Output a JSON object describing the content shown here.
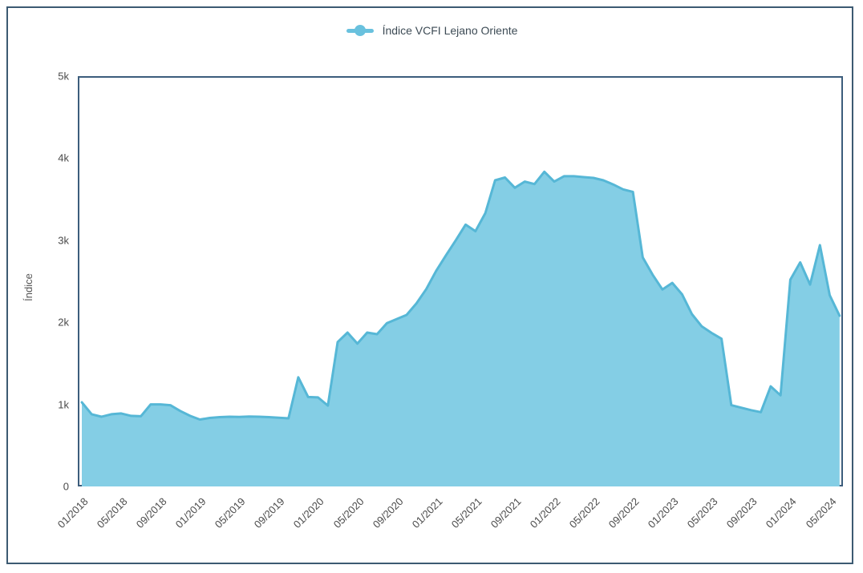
{
  "window": {
    "background": "#ffffff",
    "frame_border_color": "#3c5a72"
  },
  "legend": {
    "label": "Índice VCFI Lejano Oriente",
    "marker_color": "#69c1de",
    "text_color": "#3d4b55",
    "position": "top-center"
  },
  "chart_data": {
    "type": "area",
    "title": "",
    "xlabel": "",
    "ylabel": "Índice",
    "ylim": [
      0,
      5000
    ],
    "grid": "horizontal-only",
    "legend_position": "top-center",
    "y_ticks": [
      0,
      1000,
      2000,
      3000,
      4000,
      5000
    ],
    "y_tick_labels": [
      "0",
      "1k",
      "2k",
      "3k",
      "4k",
      "5k"
    ],
    "x_tick_every": 4,
    "x_tick_labels": [
      "01/2018",
      "05/2018",
      "09/2018",
      "01/2019",
      "05/2019",
      "09/2019",
      "01/2020",
      "05/2020",
      "09/2020",
      "01/2021",
      "05/2021",
      "09/2021",
      "01/2022",
      "05/2022",
      "09/2022",
      "01/2023",
      "05/2023",
      "09/2023",
      "01/2024",
      "05/2024"
    ],
    "x": [
      "01/2018",
      "02/2018",
      "03/2018",
      "04/2018",
      "05/2018",
      "06/2018",
      "07/2018",
      "08/2018",
      "09/2018",
      "10/2018",
      "11/2018",
      "12/2018",
      "01/2019",
      "02/2019",
      "03/2019",
      "04/2019",
      "05/2019",
      "06/2019",
      "07/2019",
      "08/2019",
      "09/2019",
      "10/2019",
      "11/2019",
      "12/2019",
      "01/2020",
      "02/2020",
      "03/2020",
      "04/2020",
      "05/2020",
      "06/2020",
      "07/2020",
      "08/2020",
      "09/2020",
      "10/2020",
      "11/2020",
      "12/2020",
      "01/2021",
      "02/2021",
      "03/2021",
      "04/2021",
      "05/2021",
      "06/2021",
      "07/2021",
      "08/2021",
      "09/2021",
      "10/2021",
      "11/2021",
      "12/2021",
      "01/2022",
      "02/2022",
      "03/2022",
      "04/2022",
      "05/2022",
      "06/2022",
      "07/2022",
      "08/2022",
      "09/2022",
      "10/2022",
      "11/2022",
      "12/2022",
      "01/2023",
      "02/2023",
      "03/2023",
      "04/2023",
      "05/2023",
      "06/2023",
      "07/2023",
      "08/2023",
      "09/2023",
      "10/2023",
      "11/2023",
      "12/2023",
      "01/2024",
      "02/2024",
      "03/2024",
      "04/2024",
      "05/2024",
      "06/2024"
    ],
    "series": [
      {
        "name": "Índice VCFI Lejano Oriente",
        "values": [
          1025,
          880,
          850,
          880,
          890,
          860,
          855,
          1000,
          1000,
          990,
          920,
          860,
          815,
          835,
          845,
          850,
          848,
          852,
          850,
          845,
          838,
          830,
          1330,
          1090,
          1085,
          985,
          1760,
          1875,
          1740,
          1875,
          1855,
          1990,
          2040,
          2090,
          2230,
          2405,
          2625,
          2815,
          3000,
          3190,
          3110,
          3330,
          3730,
          3765,
          3640,
          3715,
          3685,
          3835,
          3715,
          3780,
          3780,
          3770,
          3760,
          3730,
          3680,
          3620,
          3590,
          2790,
          2580,
          2400,
          2480,
          2340,
          2100,
          1950,
          1870,
          1800,
          990,
          960,
          930,
          905,
          1220,
          1110,
          2520,
          2730,
          2460,
          2940,
          2330,
          2080
        ]
      }
    ],
    "area_fill": "#84cee5",
    "line_color": "#56b7d6",
    "plot_border_color": "#3c5d7c",
    "gridline_color": "#e2e2e2",
    "axis_label_color": "#4a4a4a"
  }
}
